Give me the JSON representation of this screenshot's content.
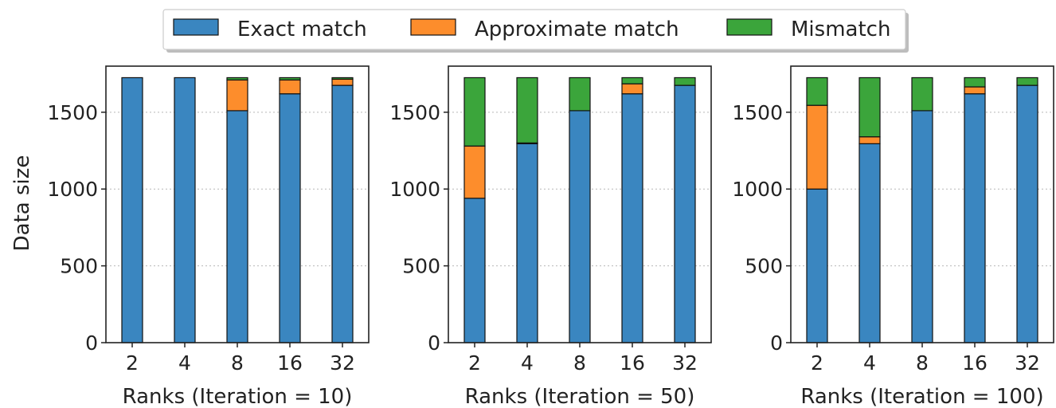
{
  "chart_data": {
    "type": "bar",
    "stacked": true,
    "legend": {
      "placement": "top-center",
      "entries": [
        {
          "label": "Exact match",
          "color": "#3a86c0"
        },
        {
          "label": "Approximate match",
          "color": "#fd8d2c"
        },
        {
          "label": "Mismatch",
          "color": "#3ba53b"
        }
      ]
    },
    "ylabel": "Data size",
    "ylim": [
      0,
      1800
    ],
    "yticks": [
      0,
      500,
      1000,
      1500
    ],
    "grid": "horizontal-dotted",
    "panels": [
      {
        "xlabel": "Ranks (Iteration = 10)",
        "categories": [
          "2",
          "4",
          "8",
          "16",
          "32"
        ],
        "series": [
          {
            "name": "Exact match",
            "values": [
              1725,
              1725,
              1510,
              1620,
              1675
            ]
          },
          {
            "name": "Approximate match",
            "values": [
              0,
              0,
              200,
              90,
              40
            ]
          },
          {
            "name": "Mismatch",
            "values": [
              0,
              0,
              15,
              15,
              10
            ]
          }
        ]
      },
      {
        "xlabel": "Ranks (Iteration = 50)",
        "categories": [
          "2",
          "4",
          "8",
          "16",
          "32"
        ],
        "series": [
          {
            "name": "Exact match",
            "values": [
              940,
              1295,
              1510,
              1620,
              1675
            ]
          },
          {
            "name": "Approximate match",
            "values": [
              340,
              5,
              0,
              65,
              0
            ]
          },
          {
            "name": "Mismatch",
            "values": [
              445,
              425,
              215,
              40,
              50
            ]
          }
        ]
      },
      {
        "xlabel": "Ranks (Iteration = 100)",
        "categories": [
          "2",
          "4",
          "8",
          "16",
          "32"
        ],
        "series": [
          {
            "name": "Exact match",
            "values": [
              1000,
              1295,
              1510,
              1620,
              1675
            ]
          },
          {
            "name": "Approximate match",
            "values": [
              545,
              45,
              0,
              45,
              0
            ]
          },
          {
            "name": "Mismatch",
            "values": [
              180,
              385,
              215,
              60,
              50
            ]
          }
        ]
      }
    ]
  }
}
